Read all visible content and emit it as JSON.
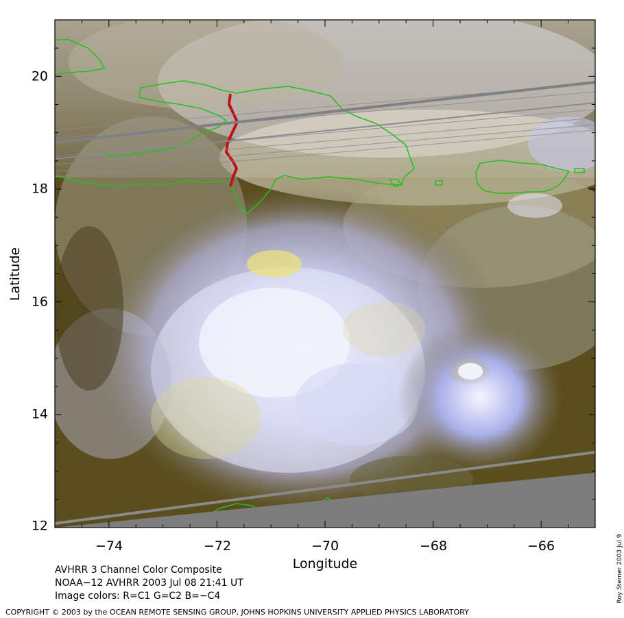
{
  "map": {
    "xlabel": "Longitude",
    "ylabel": "Latitude",
    "x_ticks": [
      "−74",
      "−72",
      "−70",
      "−68",
      "−66"
    ],
    "y_ticks": [
      "20",
      "18",
      "16",
      "14",
      "12"
    ],
    "extent": {
      "lon": [
        -75,
        -65
      ],
      "lat": [
        12,
        21
      ]
    },
    "coastline_color": "#22c21c",
    "boundary_color": "#c0101a",
    "image_colors": {
      "clouds": "#e9e9f7",
      "cloud_tint_blue": "#9aa6e6",
      "cloud_tint_yellow": "#e9e08a",
      "ground": "#5b4e1e",
      "no_data": "#7d7d7d"
    }
  },
  "caption": {
    "line1": "AVHRR 3 Channel Color Composite",
    "line2": "NOAA−12 AVHRR 2003 Jul 08 21:41 UT",
    "line3": "Image colors: R=C1 G=C2 B=−C4"
  },
  "footer": {
    "copyright": "COPYRIGHT © 2003 by the OCEAN REMOTE SENSING GROUP, JOHNS HOPKINS UNIVERSITY APPLIED PHYSICS LABORATORY",
    "signature": "Roy Sterner 2003 Jul  9"
  }
}
